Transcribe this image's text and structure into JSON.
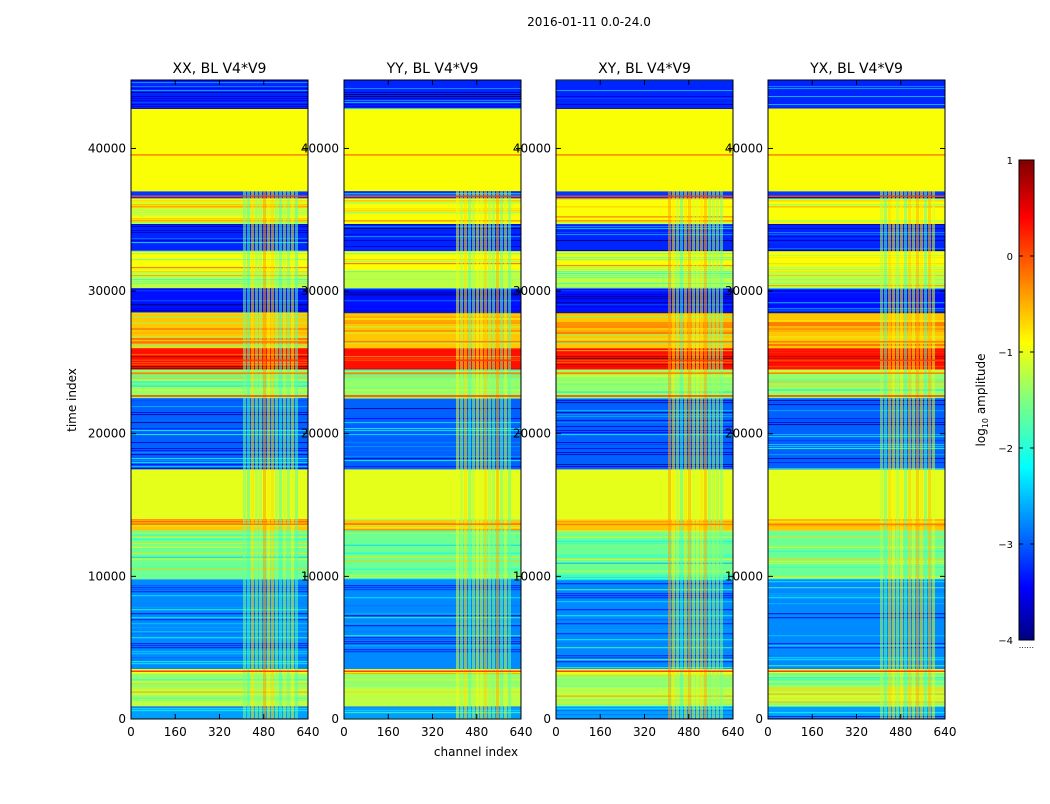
{
  "suptitle": "2016-01-11 0.0-24.0",
  "chart_data": {
    "type": "heatmap",
    "title": "2016-01-11 0.0-24.0",
    "xlabel": "channel index",
    "ylabel": "time index",
    "xlim": [
      0,
      640
    ],
    "ylim": [
      0,
      44800
    ],
    "xticks": [
      0,
      160,
      320,
      480,
      640
    ],
    "yticks": [
      0,
      10000,
      20000,
      30000,
      40000
    ],
    "panels": [
      {
        "title": "XX, BL V4*V9",
        "polarization": "XX"
      },
      {
        "title": "YY, BL V4*V9",
        "polarization": "YY"
      },
      {
        "title": "XY, BL V4*V9",
        "polarization": "XY"
      },
      {
        "title": "YX, BL V4*V9",
        "polarization": "YX"
      }
    ],
    "colorbar": {
      "label": "log10 amplitude",
      "label_base": "log",
      "label_sub": "10",
      "label_rest": " amplitude",
      "colormap": "jet",
      "min": -4,
      "max": 1,
      "ticks": [
        1,
        0,
        -1,
        -2,
        -3,
        -4
      ],
      "tick_labels": [
        "1",
        "0",
        "−1",
        "−2",
        "−3",
        "−4"
      ]
    },
    "approx_bands": [
      {
        "t_start": 0,
        "t_end": 900,
        "level": -2.6
      },
      {
        "t_start": 900,
        "t_end": 2200,
        "level": -1.2
      },
      {
        "t_start": 2200,
        "t_end": 3200,
        "level": -1.4
      },
      {
        "t_start": 3200,
        "t_end": 3500,
        "level": -0.9
      },
      {
        "t_start": 3500,
        "t_end": 9800,
        "level": -2.7
      },
      {
        "t_start": 9800,
        "t_end": 13200,
        "level": -1.6
      },
      {
        "t_start": 13200,
        "t_end": 14000,
        "level": -0.6
      },
      {
        "t_start": 14000,
        "t_end": 17500,
        "level": -1.0
      },
      {
        "t_start": 17500,
        "t_end": 22500,
        "level": -2.9
      },
      {
        "t_start": 22500,
        "t_end": 24500,
        "level": -1.4
      },
      {
        "t_start": 24500,
        "t_end": 26000,
        "level": 0.3
      },
      {
        "t_start": 26000,
        "t_end": 28500,
        "level": -0.6
      },
      {
        "t_start": 28500,
        "t_end": 30200,
        "level": -3.3
      },
      {
        "t_start": 30200,
        "t_end": 31400,
        "level": -1.2
      },
      {
        "t_start": 31400,
        "t_end": 32800,
        "level": -0.9
      },
      {
        "t_start": 32800,
        "t_end": 34700,
        "level": -3.2
      },
      {
        "t_start": 34700,
        "t_end": 36500,
        "level": -0.9
      },
      {
        "t_start": 36500,
        "t_end": 37000,
        "level": -3.1
      },
      {
        "t_start": 37000,
        "t_end": 42800,
        "level": -0.9
      },
      {
        "t_start": 42800,
        "t_end": 44800,
        "level": -3.2
      }
    ]
  }
}
